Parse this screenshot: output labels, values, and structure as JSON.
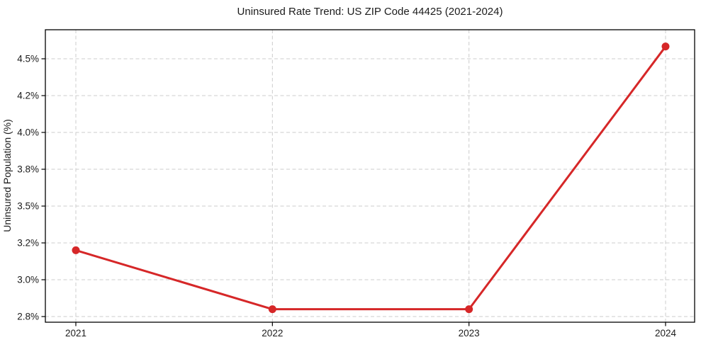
{
  "figure": {
    "background_color": "#ffffff"
  },
  "chart_data": {
    "type": "line",
    "title": "Uninsured Rate Trend: US ZIP Code 44425 (2021-2024)",
    "xlabel": "",
    "ylabel": "Uninsured Population (%)",
    "categories": [
      "2021",
      "2022",
      "2023",
      "2024"
    ],
    "series": [
      {
        "name": "uninsured-rate",
        "values": [
          3.16,
          2.84,
          2.84,
          4.6
        ],
        "unit": "%"
      }
    ],
    "ytick_labels": [
      "2.8%",
      "3.0%",
      "3.2%",
      "3.5%",
      "3.8%",
      "4.0%",
      "4.2%",
      "4.5%"
    ],
    "ytick_values": [
      2.8,
      3.0,
      3.2,
      3.5,
      3.8,
      4.0,
      4.2,
      4.5
    ],
    "ylim": [
      2.76,
      4.69
    ],
    "grid": true,
    "grid_style": "dashed",
    "legend_position": "none",
    "colors": {
      "line": "#d62728",
      "marker": "#d62728",
      "grid": "#cccccc",
      "spine": "#000000",
      "text": "#1c1c1c"
    }
  }
}
